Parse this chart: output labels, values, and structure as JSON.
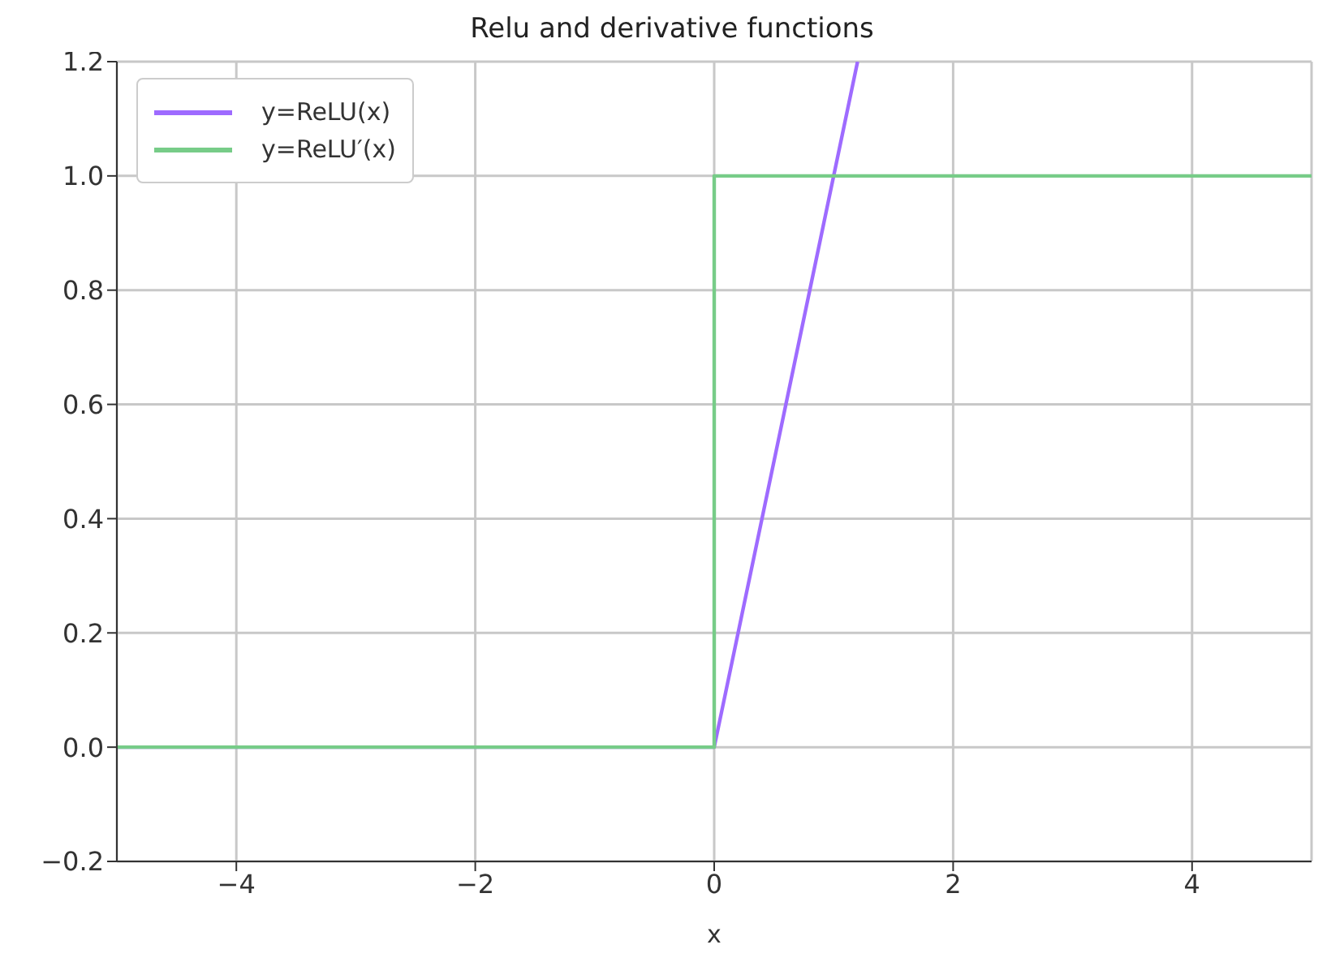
{
  "chart_data": {
    "type": "line",
    "title": "Relu and derivative functions",
    "xlabel": "x",
    "series": [
      {
        "name": "y=ReLU(x)",
        "color": "#9e6bff",
        "x": [
          -5,
          0,
          1.2
        ],
        "values": [
          0,
          0,
          1.2
        ]
      },
      {
        "name": "y=ReLU′(x)",
        "color": "#77cc88",
        "x": [
          -5,
          0,
          0,
          5
        ],
        "values": [
          0,
          0,
          1,
          1
        ]
      }
    ],
    "xlim": [
      -5,
      5
    ],
    "xticks": [
      {
        "value": -4,
        "label": "−4"
      },
      {
        "value": -2,
        "label": "−2"
      },
      0,
      2,
      4
    ],
    "ylim": [
      -0.2,
      1.2
    ],
    "yticks": [
      {
        "value": -0.2,
        "label": "−0.2"
      },
      {
        "value": 0,
        "label": "0.0"
      },
      {
        "value": 0.2,
        "label": "0.2"
      },
      {
        "value": 0.4,
        "label": "0.4"
      },
      {
        "value": 0.6,
        "label": "0.6"
      },
      {
        "value": 0.8,
        "label": "0.8"
      },
      {
        "value": 1,
        "label": "1.0"
      },
      {
        "value": 1.2,
        "label": "1.2"
      }
    ],
    "grid": true,
    "legend": "top left",
    "marker": "none",
    "line_style": "solid"
  }
}
